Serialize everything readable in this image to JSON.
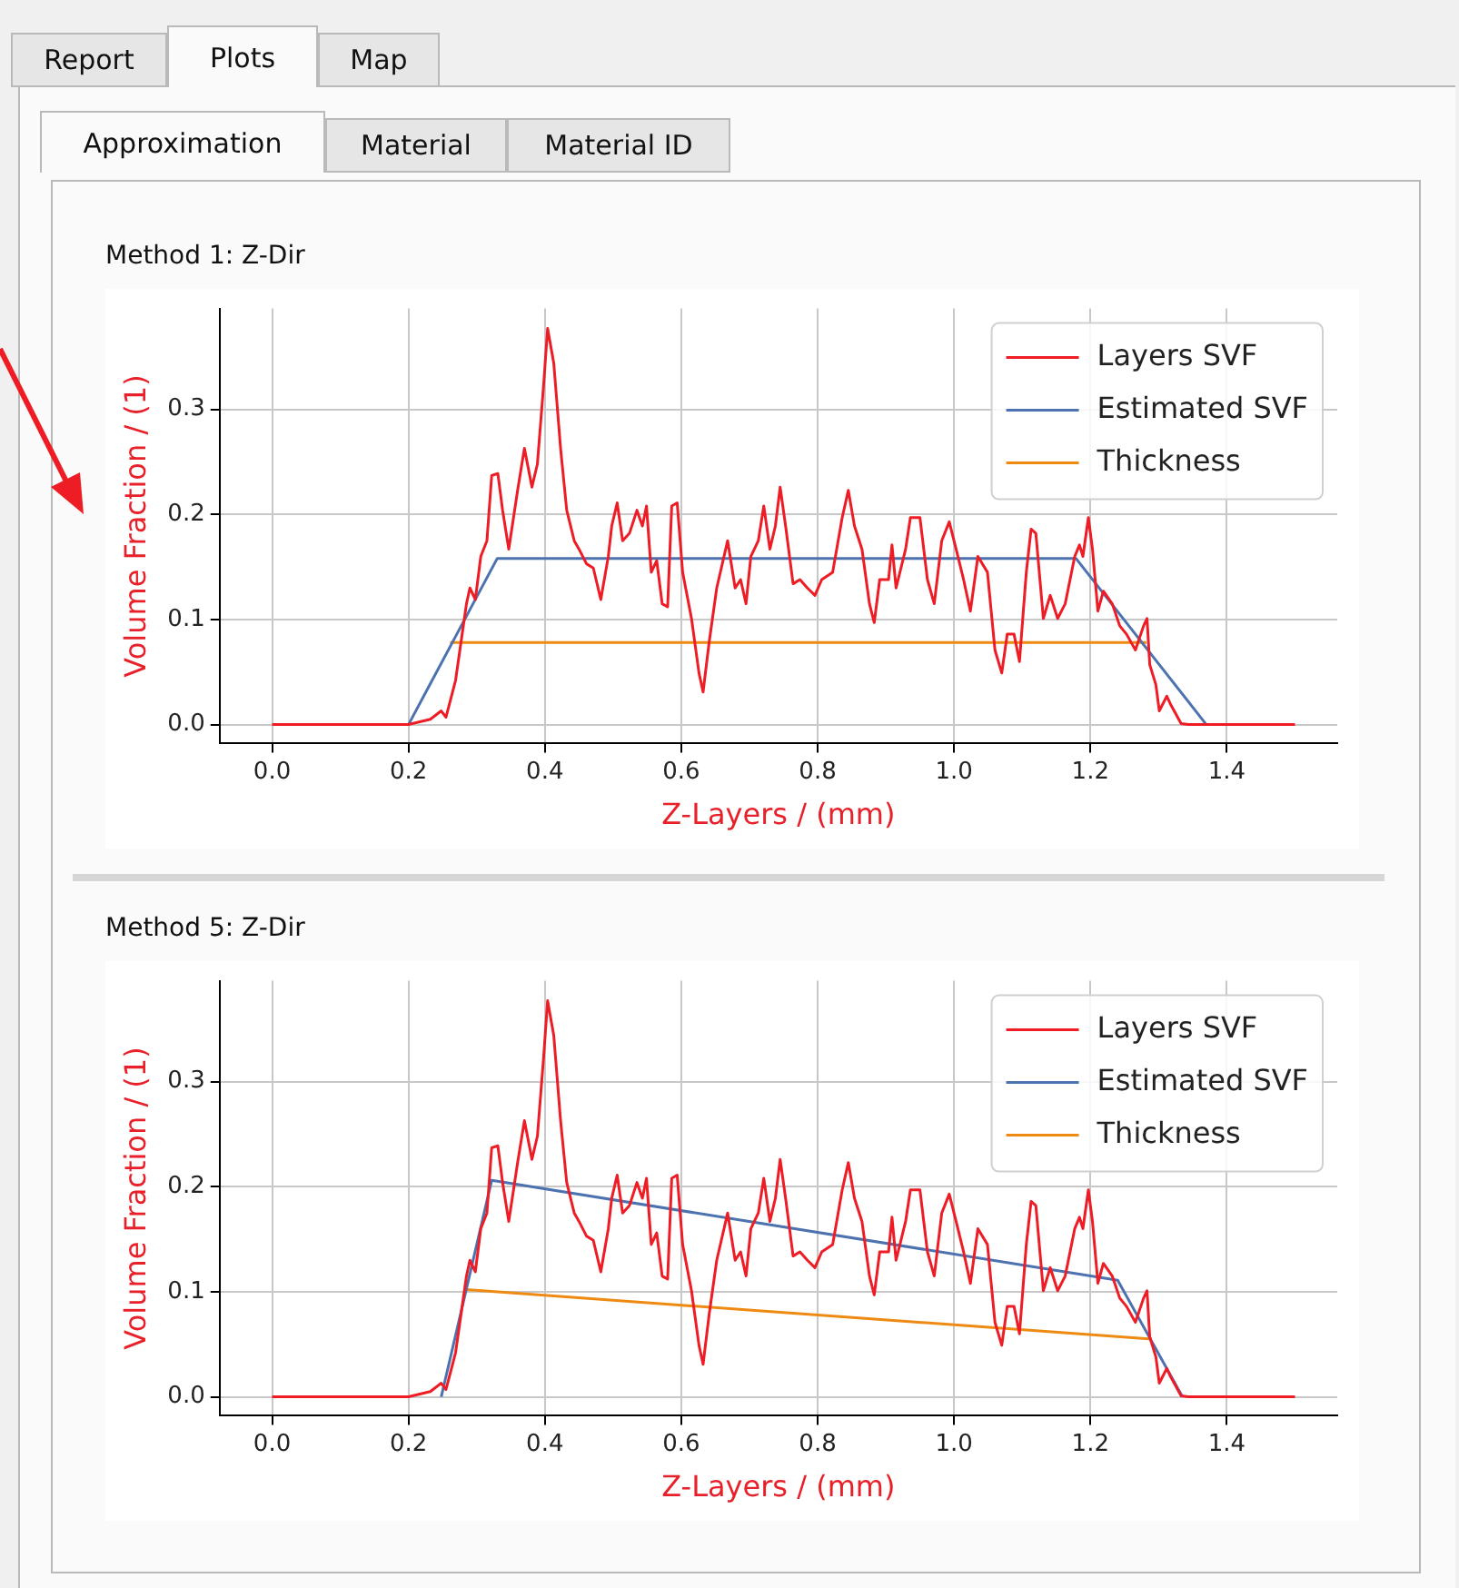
{
  "chart_data": [
    {
      "type": "other",
      "annotations": [
        "Report",
        "Plots",
        "Map"
      ]
    },
    {
      "type": "other",
      "annotations": [
        "Approximation",
        "Material",
        "Material ID"
      ]
    },
    {
      "type": "line",
      "title": "Method 1: Z-Dir",
      "xlabel": "Z-Layers / (mm)",
      "ylabel": "Volume Fraction / (1)",
      "xlim": [
        -0.077,
        1.562
      ],
      "ylim": [
        -0.018,
        0.396
      ],
      "xticks": [
        {
          "value": 0,
          "label": "0.0"
        },
        {
          "value": 0.2,
          "label": "0.2"
        },
        {
          "value": 0.4,
          "label": "0.4"
        },
        {
          "value": 0.6,
          "label": "0.6"
        },
        {
          "value": 0.8,
          "label": "0.8"
        },
        {
          "value": 1,
          "label": "1.0"
        },
        {
          "value": 1.2,
          "label": "1.2"
        },
        {
          "value": 1.4,
          "label": "1.4"
        }
      ],
      "yticks": [
        {
          "value": 0,
          "label": "0.0"
        },
        {
          "value": 0.1,
          "label": "0.1"
        },
        {
          "value": 0.2,
          "label": "0.2"
        },
        {
          "value": 0.3,
          "label": "0.3"
        }
      ],
      "grid": true,
      "legend": "top right",
      "marker": "none",
      "line_style": "solid",
      "series": [
        {
          "name": "Layers SVF",
          "color": "#ee1c25",
          "x": [
            0,
            0.2,
            0.232,
            0.248,
            0.255,
            0.269,
            0.285,
            0.29,
            0.298,
            0.306,
            0.315,
            0.322,
            0.331,
            0.338,
            0.347,
            0.354,
            0.36,
            0.37,
            0.381,
            0.389,
            0.398,
            0.404,
            0.413,
            0.423,
            0.432,
            0.443,
            0.45,
            0.461,
            0.471,
            0.482,
            0.493,
            0.498,
            0.506,
            0.514,
            0.524,
            0.535,
            0.543,
            0.549,
            0.556,
            0.564,
            0.572,
            0.58,
            0.586,
            0.594,
            0.602,
            0.615,
            0.626,
            0.632,
            0.641,
            0.652,
            0.668,
            0.679,
            0.687,
            0.695,
            0.702,
            0.713,
            0.721,
            0.73,
            0.738,
            0.745,
            0.753,
            0.764,
            0.774,
            0.785,
            0.796,
            0.806,
            0.822,
            0.836,
            0.845,
            0.854,
            0.865,
            0.876,
            0.883,
            0.891,
            0.904,
            0.909,
            0.915,
            0.929,
            0.936,
            0.95,
            0.961,
            0.971,
            0.982,
            0.993,
            1.003,
            1.014,
            1.024,
            1.035,
            1.049,
            1.06,
            1.07,
            1.078,
            1.088,
            1.096,
            1.106,
            1.113,
            1.12,
            1.131,
            1.141,
            1.152,
            1.163,
            1.177,
            1.184,
            1.189,
            1.197,
            1.203,
            1.211,
            1.219,
            1.232,
            1.243,
            1.253,
            1.266,
            1.278,
            1.283,
            1.287,
            1.296,
            1.301,
            1.312,
            1.317,
            1.333,
            1.344,
            1.5
          ],
          "values": [
            0,
            0,
            0.005,
            0.013,
            0.007,
            0.042,
            0.115,
            0.13,
            0.119,
            0.16,
            0.175,
            0.237,
            0.239,
            0.204,
            0.167,
            0.197,
            0.223,
            0.263,
            0.226,
            0.248,
            0.322,
            0.377,
            0.344,
            0.263,
            0.204,
            0.175,
            0.167,
            0.153,
            0.149,
            0.119,
            0.16,
            0.189,
            0.211,
            0.175,
            0.182,
            0.204,
            0.189,
            0.208,
            0.145,
            0.156,
            0.115,
            0.112,
            0.208,
            0.211,
            0.145,
            0.101,
            0.049,
            0.031,
            0.079,
            0.13,
            0.175,
            0.13,
            0.138,
            0.115,
            0.16,
            0.175,
            0.208,
            0.167,
            0.189,
            0.226,
            0.189,
            0.134,
            0.138,
            0.13,
            0.123,
            0.138,
            0.145,
            0.197,
            0.223,
            0.189,
            0.167,
            0.115,
            0.097,
            0.138,
            0.138,
            0.171,
            0.13,
            0.167,
            0.197,
            0.197,
            0.138,
            0.115,
            0.175,
            0.193,
            0.167,
            0.138,
            0.108,
            0.16,
            0.145,
            0.071,
            0.049,
            0.086,
            0.086,
            0.06,
            0.145,
            0.186,
            0.182,
            0.101,
            0.123,
            0.101,
            0.115,
            0.16,
            0.171,
            0.16,
            0.197,
            0.167,
            0.108,
            0.127,
            0.115,
            0.094,
            0.086,
            0.071,
            0.094,
            0.101,
            0.057,
            0.038,
            0.013,
            0.027,
            0.02,
            0.001,
            0,
            0
          ]
        },
        {
          "name": "Estimated SVF",
          "color": "#4c72b0",
          "x": [
            0.2,
            0.33,
            1.179,
            1.37
          ],
          "values": [
            0,
            0.158,
            0.158,
            0
          ]
        },
        {
          "name": "Thickness",
          "color": "#ee8a12",
          "x": [
            0.261,
            1.282
          ],
          "values": [
            0.078,
            0.078
          ]
        }
      ]
    },
    {
      "type": "line",
      "title": "Method 5: Z-Dir",
      "xlabel": "Z-Layers / (mm)",
      "ylabel": "Volume Fraction / (1)",
      "xlim": [
        -0.077,
        1.562
      ],
      "ylim": [
        -0.018,
        0.396
      ],
      "xticks": [
        {
          "value": 0,
          "label": "0.0"
        },
        {
          "value": 0.2,
          "label": "0.2"
        },
        {
          "value": 0.4,
          "label": "0.4"
        },
        {
          "value": 0.6,
          "label": "0.6"
        },
        {
          "value": 0.8,
          "label": "0.8"
        },
        {
          "value": 1,
          "label": "1.0"
        },
        {
          "value": 1.2,
          "label": "1.2"
        },
        {
          "value": 1.4,
          "label": "1.4"
        }
      ],
      "yticks": [
        {
          "value": 0,
          "label": "0.0"
        },
        {
          "value": 0.1,
          "label": "0.1"
        },
        {
          "value": 0.2,
          "label": "0.2"
        },
        {
          "value": 0.3,
          "label": "0.3"
        }
      ],
      "grid": true,
      "legend": "top right",
      "marker": "none",
      "line_style": "solid",
      "series": [
        {
          "name": "Layers SVF",
          "color": "#ee1c25",
          "x": [
            0,
            0.2,
            0.232,
            0.248,
            0.255,
            0.269,
            0.285,
            0.29,
            0.298,
            0.306,
            0.315,
            0.322,
            0.331,
            0.338,
            0.347,
            0.354,
            0.36,
            0.37,
            0.381,
            0.389,
            0.398,
            0.404,
            0.413,
            0.423,
            0.432,
            0.443,
            0.45,
            0.461,
            0.471,
            0.482,
            0.493,
            0.498,
            0.506,
            0.514,
            0.524,
            0.535,
            0.543,
            0.549,
            0.556,
            0.564,
            0.572,
            0.58,
            0.586,
            0.594,
            0.602,
            0.615,
            0.626,
            0.632,
            0.641,
            0.652,
            0.668,
            0.679,
            0.687,
            0.695,
            0.702,
            0.713,
            0.721,
            0.73,
            0.738,
            0.745,
            0.753,
            0.764,
            0.774,
            0.785,
            0.796,
            0.806,
            0.822,
            0.836,
            0.845,
            0.854,
            0.865,
            0.876,
            0.883,
            0.891,
            0.904,
            0.909,
            0.915,
            0.929,
            0.936,
            0.95,
            0.961,
            0.971,
            0.982,
            0.993,
            1.003,
            1.014,
            1.024,
            1.035,
            1.049,
            1.06,
            1.07,
            1.078,
            1.088,
            1.096,
            1.106,
            1.113,
            1.12,
            1.131,
            1.141,
            1.152,
            1.163,
            1.177,
            1.184,
            1.189,
            1.197,
            1.203,
            1.211,
            1.219,
            1.232,
            1.243,
            1.253,
            1.266,
            1.278,
            1.283,
            1.287,
            1.296,
            1.301,
            1.312,
            1.317,
            1.333,
            1.344,
            1.5
          ],
          "values": [
            0,
            0,
            0.005,
            0.013,
            0.007,
            0.042,
            0.115,
            0.13,
            0.119,
            0.16,
            0.175,
            0.237,
            0.239,
            0.204,
            0.167,
            0.197,
            0.223,
            0.263,
            0.226,
            0.248,
            0.322,
            0.377,
            0.344,
            0.263,
            0.204,
            0.175,
            0.167,
            0.153,
            0.149,
            0.119,
            0.16,
            0.189,
            0.211,
            0.175,
            0.182,
            0.204,
            0.189,
            0.208,
            0.145,
            0.156,
            0.115,
            0.112,
            0.208,
            0.211,
            0.145,
            0.101,
            0.049,
            0.031,
            0.079,
            0.13,
            0.175,
            0.13,
            0.138,
            0.115,
            0.16,
            0.175,
            0.208,
            0.167,
            0.189,
            0.226,
            0.189,
            0.134,
            0.138,
            0.13,
            0.123,
            0.138,
            0.145,
            0.197,
            0.223,
            0.189,
            0.167,
            0.115,
            0.097,
            0.138,
            0.138,
            0.171,
            0.13,
            0.167,
            0.197,
            0.197,
            0.138,
            0.115,
            0.175,
            0.193,
            0.167,
            0.138,
            0.108,
            0.16,
            0.145,
            0.071,
            0.049,
            0.086,
            0.086,
            0.06,
            0.145,
            0.186,
            0.182,
            0.101,
            0.123,
            0.101,
            0.115,
            0.16,
            0.171,
            0.16,
            0.197,
            0.167,
            0.108,
            0.127,
            0.115,
            0.094,
            0.086,
            0.071,
            0.094,
            0.101,
            0.057,
            0.038,
            0.013,
            0.027,
            0.02,
            0.001,
            0,
            0
          ]
        },
        {
          "name": "Estimated SVF",
          "color": "#4c72b0",
          "x": [
            0.248,
            0.322,
            1.24,
            1.335
          ],
          "values": [
            0,
            0.206,
            0.111,
            0
          ]
        },
        {
          "name": "Thickness",
          "color": "#ee8a12",
          "x": [
            0.285,
            1.29
          ],
          "values": [
            0.102,
            0.055
          ]
        }
      ]
    }
  ]
}
